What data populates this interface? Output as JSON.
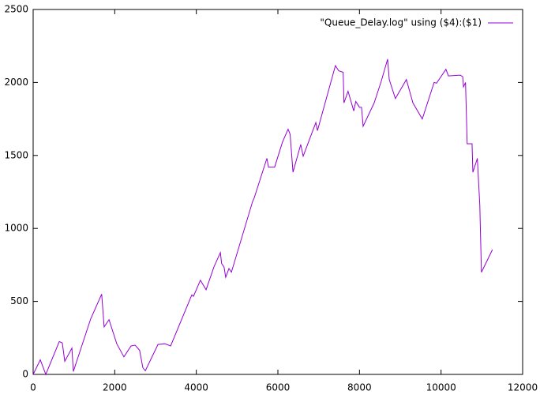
{
  "chart_data": {
    "type": "line",
    "legend_position": "top-right",
    "xlim": [
      0,
      12000
    ],
    "xticks": [
      0,
      2000,
      4000,
      6000,
      8000,
      10000,
      12000
    ],
    "ylim": [
      0,
      2500
    ],
    "yticks": [
      0,
      500,
      1000,
      1500,
      2000,
      2500
    ],
    "series": [
      {
        "name": "\"Queue_Delay.log\" using ($4):($1)",
        "color": "#9400d3",
        "x": [
          0,
          175,
          310,
          640,
          715,
          775,
          950,
          985,
          1410,
          1680,
          1740,
          1860,
          2050,
          2225,
          2400,
          2500,
          2610,
          2690,
          2750,
          3060,
          3230,
          3370,
          3890,
          3930,
          4100,
          4240,
          4430,
          4590,
          4620,
          4680,
          4720,
          4800,
          4860,
          5380,
          5420,
          5730,
          5770,
          5920,
          6110,
          6250,
          6300,
          6370,
          6560,
          6620,
          6930,
          6970,
          7410,
          7490,
          7600,
          7620,
          7720,
          7860,
          7910,
          8000,
          8050,
          8090,
          8360,
          8530,
          8690,
          8730,
          8880,
          9150,
          9310,
          9540,
          9830,
          9890,
          10120,
          10180,
          10470,
          10530,
          10550,
          10600,
          10640,
          10760,
          10780,
          10890,
          10950,
          10990,
          11130,
          11260
        ],
        "values": [
          0,
          100,
          0,
          225,
          215,
          90,
          180,
          20,
          380,
          550,
          325,
          375,
          210,
          120,
          195,
          200,
          165,
          45,
          25,
          205,
          210,
          195,
          545,
          535,
          645,
          580,
          735,
          835,
          760,
          735,
          665,
          725,
          700,
          1185,
          1210,
          1480,
          1420,
          1420,
          1590,
          1680,
          1645,
          1385,
          1575,
          1495,
          1725,
          1670,
          2115,
          2080,
          2070,
          1860,
          1940,
          1805,
          1870,
          1830,
          1830,
          1700,
          1860,
          2005,
          2160,
          2020,
          1890,
          2020,
          1860,
          1750,
          2000,
          1995,
          2090,
          2045,
          2050,
          2040,
          1970,
          2000,
          1580,
          1580,
          1385,
          1480,
          1160,
          700,
          780,
          855
        ]
      }
    ]
  }
}
